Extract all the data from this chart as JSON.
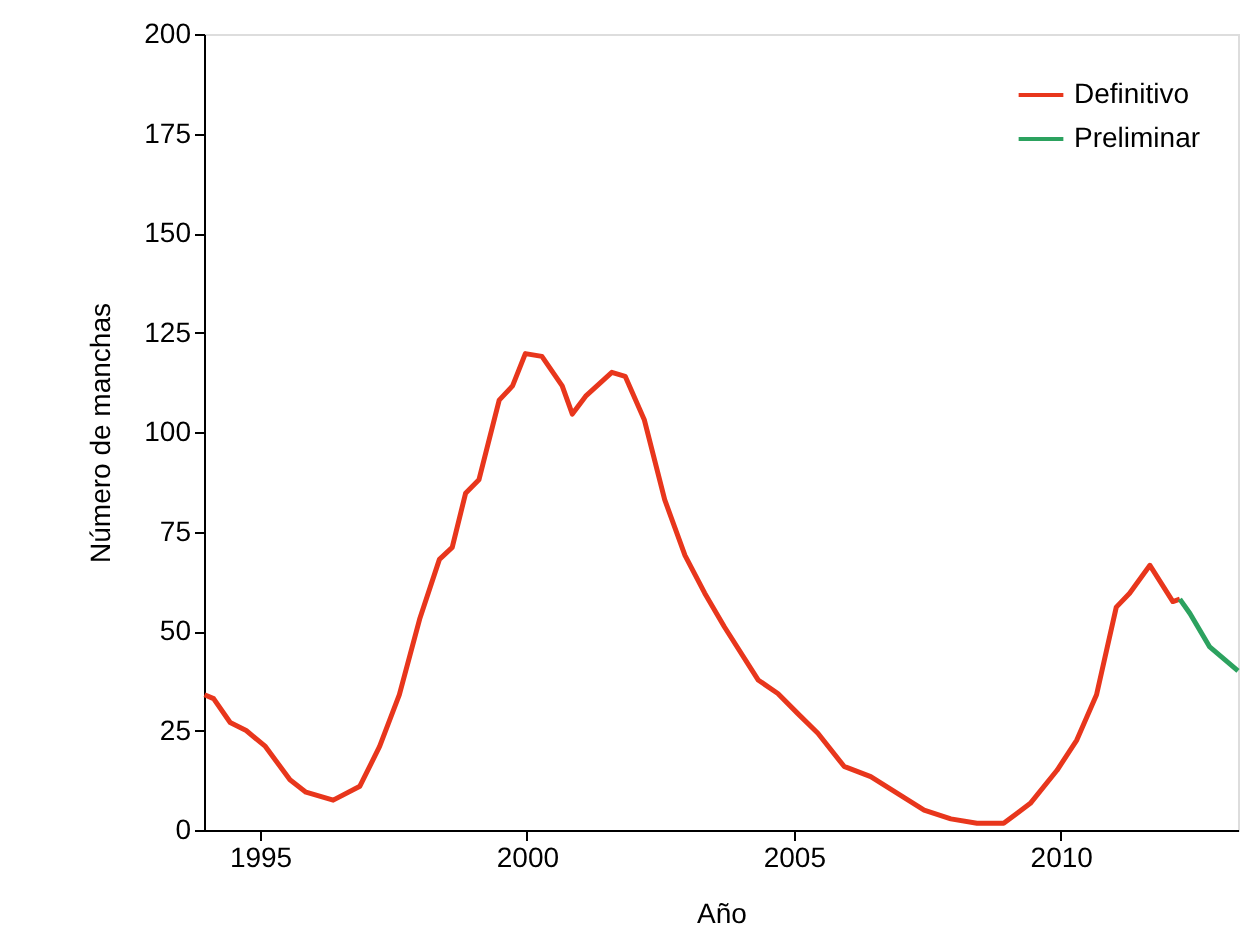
{
  "chart_data": {
    "type": "line",
    "xlabel": "Año",
    "ylabel": "Número de manchas",
    "xlim": [
      1993.95,
      2013.32
    ],
    "xticks": [
      1995,
      2000,
      2005,
      2010
    ],
    "ylim": [
      0,
      200
    ],
    "yticks": [
      0,
      25,
      50,
      75,
      100,
      125,
      150,
      175,
      200
    ],
    "grid": false,
    "legend": "top right",
    "line_style": "solid",
    "marker": "none",
    "series": [
      {
        "name": "Definitivo",
        "color": "#e8361c",
        "x": [
          1993.96,
          1994.13,
          1994.44,
          1994.74,
          1995.1,
          1995.56,
          1995.86,
          1996.37,
          1996.87,
          1997.24,
          1997.61,
          1997.99,
          1998.36,
          1998.6,
          1998.85,
          1999.1,
          1999.48,
          1999.73,
          1999.97,
          2000.28,
          2000.66,
          2000.85,
          2001.1,
          2001.59,
          2001.84,
          2002.2,
          2002.58,
          2002.96,
          2003.33,
          2003.7,
          2004.33,
          2004.7,
          2005.07,
          2005.45,
          2005.94,
          2006.44,
          2006.94,
          2007.44,
          2007.94,
          2008.43,
          2008.93,
          2009.43,
          2009.93,
          2010.3,
          2010.67,
          2011.04,
          2011.29,
          2011.67,
          2012.1,
          2012.23
        ],
        "values": [
          34,
          33,
          27,
          25,
          21,
          12.6,
          9.5,
          7.5,
          11,
          21,
          34,
          53,
          68,
          71,
          84.6,
          88,
          108,
          111.6,
          119.7,
          119,
          111.6,
          104.5,
          109,
          115,
          114,
          103,
          83,
          69,
          59.5,
          51,
          37.7,
          34.3,
          29.3,
          24.3,
          16,
          13.4,
          9.2,
          5,
          2.8,
          1.7,
          1.7,
          6.7,
          15,
          22.6,
          34,
          56,
          59.5,
          66.5,
          57.4,
          58
        ]
      },
      {
        "name": "Preliminar",
        "color": "#2ca25f",
        "x": [
          2012.23,
          2012.42,
          2012.79,
          2013.32
        ],
        "values": [
          58,
          54.4,
          46,
          40
        ]
      }
    ]
  }
}
